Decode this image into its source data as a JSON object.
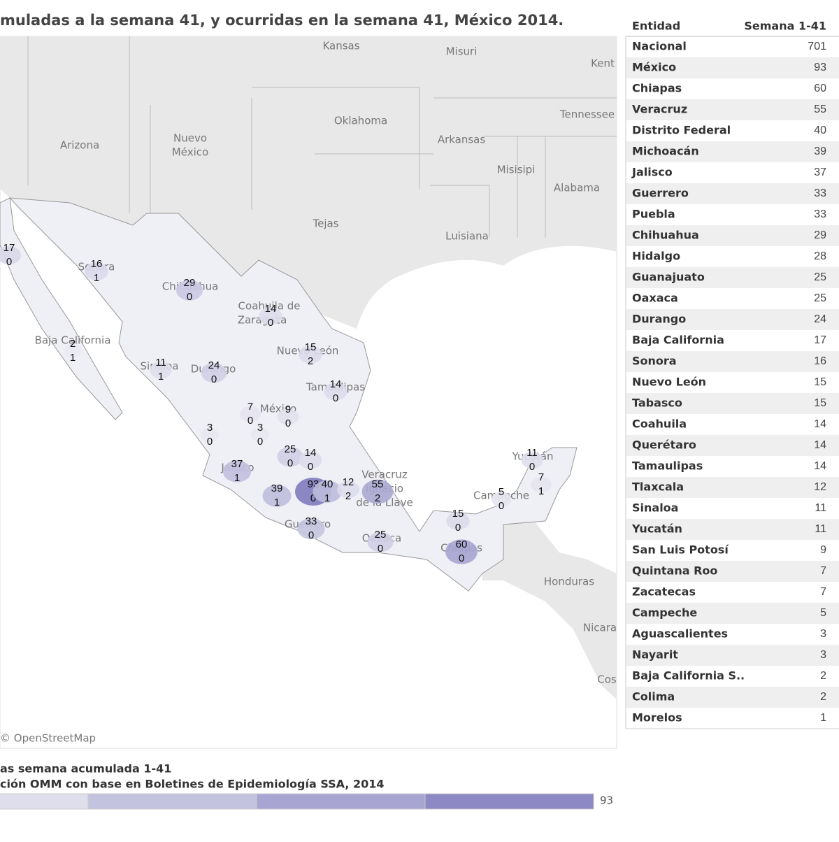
{
  "title": "muladas a la semana 41, y ocurridas en la semana 41, México 2014.",
  "map": {
    "places": [
      "Kansas",
      "Misuri",
      "Kent",
      "Tennessee",
      "Oklahoma",
      "Arkansas",
      "Arizona",
      "Nuevo",
      "México",
      "Misisipi",
      "Alabama",
      "Tejas",
      "Luisiana",
      "Baja California",
      "Chihuahua",
      "Sonora",
      "Coahuila de",
      "Zaragoza",
      "Nuevo León",
      "Durango",
      "Sinaloa",
      "Tamaulipas",
      "México",
      "Jalisco",
      "Guerrero",
      "Oaxaca",
      "Chiapas",
      "Campeche",
      "Yucatán",
      "Veracruz",
      "Ignacio",
      "de la Llave",
      "Honduras",
      "Nicara",
      "Cos"
    ],
    "labels": [
      {
        "total": 17,
        "week": 0
      },
      {
        "total": 16,
        "week": 1
      },
      {
        "total": 29,
        "week": 0
      },
      {
        "total": 14,
        "week": 0
      },
      {
        "total": 15,
        "week": 2
      },
      {
        "total": 2,
        "week": 1
      },
      {
        "total": 11,
        "week": 1
      },
      {
        "total": 24,
        "week": 0
      },
      {
        "total": 14,
        "week": 0
      },
      {
        "total": 7,
        "week": 0
      },
      {
        "total": 9,
        "week": 0
      },
      {
        "total": 3,
        "week": 0
      },
      {
        "total": 3,
        "week": 0
      },
      {
        "total": 25,
        "week": 0
      },
      {
        "total": 14,
        "week": 0
      },
      {
        "total": 37,
        "week": 1
      },
      {
        "total": 39,
        "week": 1
      },
      {
        "total": 93,
        "week": 0
      },
      {
        "total": 40,
        "week": 1
      },
      {
        "total": 12,
        "week": 2
      },
      {
        "total": 55,
        "week": 2
      },
      {
        "total": 33,
        "week": 0
      },
      {
        "total": 25,
        "week": 0
      },
      {
        "total": 60,
        "week": 0
      },
      {
        "total": 15,
        "week": 0
      },
      {
        "total": 5,
        "week": 0
      },
      {
        "total": 11,
        "week": 0
      },
      {
        "total": 7,
        "week": 1
      }
    ],
    "attribution": "© OpenStreetMap"
  },
  "legend": {
    "line1": "as semana acumulada 1-41",
    "line2": "ción OMM con base en Boletines de Epidemiología SSA, 2014",
    "max": 93
  },
  "table": {
    "header": [
      "Entidad",
      "Semana 1-41"
    ],
    "rows": [
      [
        "Nacional",
        701
      ],
      [
        "México",
        93
      ],
      [
        "Chiapas",
        60
      ],
      [
        "Veracruz",
        55
      ],
      [
        "Distrito Federal",
        40
      ],
      [
        "Michoacán",
        39
      ],
      [
        "Jalisco",
        37
      ],
      [
        "Guerrero",
        33
      ],
      [
        "Puebla",
        33
      ],
      [
        "Chihuahua",
        29
      ],
      [
        "Hidalgo",
        28
      ],
      [
        "Guanajuato",
        25
      ],
      [
        "Oaxaca",
        25
      ],
      [
        "Durango",
        24
      ],
      [
        "Baja California",
        17
      ],
      [
        "Sonora",
        16
      ],
      [
        "Nuevo León",
        15
      ],
      [
        "Tabasco",
        15
      ],
      [
        "Coahuila",
        14
      ],
      [
        "Querétaro",
        14
      ],
      [
        "Tamaulipas",
        14
      ],
      [
        "Tlaxcala",
        12
      ],
      [
        "Sinaloa",
        11
      ],
      [
        "Yucatán",
        11
      ],
      [
        "San Luis Potosí",
        9
      ],
      [
        "Quintana Roo",
        7
      ],
      [
        "Zacatecas",
        7
      ],
      [
        "Campeche",
        5
      ],
      [
        "Aguascalientes",
        3
      ],
      [
        "Nayarit",
        3
      ],
      [
        "Baja California S..",
        2
      ],
      [
        "Colima",
        2
      ],
      [
        "Morelos",
        1
      ]
    ]
  }
}
